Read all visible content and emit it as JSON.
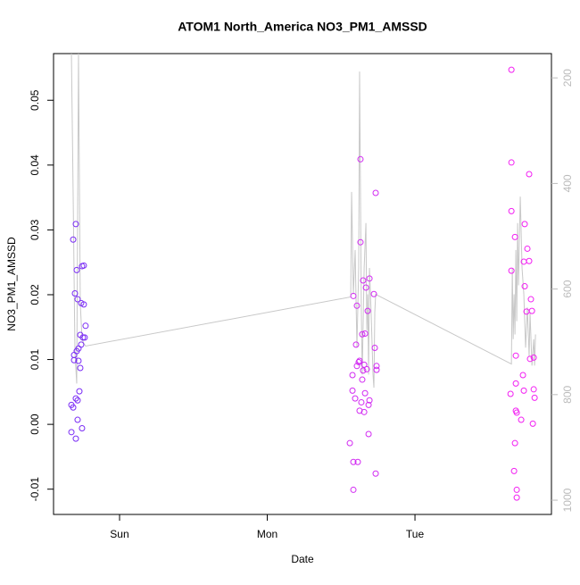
{
  "chart_data": {
    "type": "scatter",
    "title": "ATOM1 North_America NO3_PM1_AMSSD",
    "x_label": "Date",
    "y_label": "NO3_PM1_AMSSD",
    "xlim": [
      0.553,
      3.924
    ],
    "xticks": [
      {
        "value": 1,
        "label": "Sun"
      },
      {
        "value": 2,
        "label": "Mon"
      },
      {
        "value": 3,
        "label": "Tue"
      }
    ],
    "ylim": [
      -0.0139,
      0.0572
    ],
    "yticks": [
      -0.01,
      {
        "value": 0,
        "label": "0.00"
      },
      0.01,
      0.02,
      0.03,
      0.04,
      0.05
    ],
    "y2lim": [
      1027,
      154
    ],
    "y2ticks": [
      200,
      400,
      600,
      800,
      1000
    ],
    "series": [
      {
        "color": "#7a2cf5",
        "x": [
          0.674,
          0.674,
          0.686,
          0.686,
          0.692,
          0.692,
          0.698,
          0.704,
          0.704,
          0.704,
          0.71,
          0.71,
          0.716,
          0.716,
          0.716,
          0.722,
          0.722,
          0.728,
          0.734,
          0.74,
          0.74,
          0.746,
          0.746,
          0.752,
          0.758,
          0.758,
          0.764,
          0.77,
          0.734
        ],
        "values": [
          0.003,
          -0.0012,
          0.0026,
          0.0285,
          0.0099,
          0.0107,
          0.0202,
          -0.0022,
          0.004,
          0.0309,
          0.0238,
          0.0113,
          0.0007,
          0.0037,
          0.0193,
          0.0098,
          0.0117,
          0.0051,
          0.0087,
          0.0123,
          0.0187,
          0.0244,
          -0.0006,
          0.0134,
          0.0245,
          0.0185,
          0.0134,
          0.0152,
          0.0138
        ]
      },
      {
        "color": "#d22af2",
        "x": [
          2.559,
          2.577,
          2.577,
          2.583,
          2.583,
          2.583,
          2.595,
          2.601,
          2.607,
          2.607,
          2.613,
          2.619,
          2.625,
          2.625,
          2.631,
          2.631,
          2.637,
          2.643,
          2.643,
          2.649,
          2.649,
          2.656,
          2.656,
          2.662,
          2.662,
          2.668,
          2.674,
          2.68,
          2.686,
          2.686,
          2.692,
          2.692,
          2.722,
          2.728,
          2.734,
          2.734,
          2.74,
          2.74
        ],
        "values": [
          -0.0029,
          0.0076,
          0.0052,
          -0.0058,
          -0.0101,
          0.0198,
          0.004,
          0.0123,
          0.0183,
          0.009,
          -0.0058,
          0.0096,
          0.0021,
          0.0098,
          0.0281,
          0.0409,
          0.0034,
          0.0139,
          0.0069,
          0.0222,
          0.0083,
          0.0019,
          0.0092,
          0.014,
          0.0048,
          0.0211,
          0.0085,
          0.0175,
          0.003,
          -0.0015,
          0.0225,
          0.0037,
          0.0201,
          0.0118,
          -0.0076,
          0.0357,
          0.009,
          0.0084
        ]
      },
      {
        "color": "#f21ef2",
        "x": [
          3.653,
          3.653,
          3.653,
          3.653,
          3.647,
          3.671,
          3.677,
          3.677,
          3.683,
          3.683,
          3.683,
          3.689,
          3.689,
          3.689,
          3.719,
          3.731,
          3.737,
          3.737,
          3.743,
          3.743,
          3.755,
          3.761,
          3.773,
          3.773,
          3.779,
          3.785,
          3.792,
          3.798,
          3.804,
          3.804,
          3.81
        ],
        "values": [
          0.0547,
          0.0404,
          0.0329,
          0.0237,
          0.0047,
          -0.0072,
          -0.0029,
          0.0289,
          0.0063,
          0.0106,
          0.0021,
          0.0018,
          -0.0101,
          -0.0113,
          0.0007,
          0.0076,
          0.0052,
          0.0251,
          0.0309,
          0.0213,
          0.0174,
          0.0271,
          0.0252,
          0.0386,
          0.0101,
          0.0193,
          0.0175,
          0.0001,
          0.0103,
          0.0054,
          0.0041
        ]
      },
      {
        "type": "line",
        "axis": "y2",
        "color": "#c8c8c8",
        "x": [
          0.674,
          0.686,
          0.698,
          0.71,
          0.722,
          0.734,
          0.746,
          0.758,
          0.77,
          2.565,
          2.571,
          2.583,
          2.595,
          2.607,
          2.619,
          2.625,
          2.637,
          2.643,
          2.656,
          2.668,
          2.674,
          2.68,
          2.686,
          2.692,
          2.704,
          2.716,
          2.722,
          2.728,
          2.734,
          3.653,
          3.659,
          3.665,
          3.671,
          3.677,
          3.683,
          3.689,
          3.695,
          3.701,
          3.713,
          3.725,
          3.737,
          3.749,
          3.761,
          3.773,
          3.779,
          3.792,
          3.804,
          3.81,
          3.816
        ],
        "values": [
          154,
          425,
          720,
          779,
          154,
          627,
          695,
          703,
          708,
          615,
          416,
          610,
          526,
          711,
          560,
          188,
          644,
          762,
          560,
          475,
          678,
          610,
          762,
          560,
          652,
          762,
          787,
          644,
          610,
          742,
          560,
          695,
          610,
          686,
          526,
          661,
          475,
          593,
          425,
          560,
          610,
          711,
          635,
          728,
          644,
          745,
          695,
          745,
          686
        ]
      }
    ]
  }
}
